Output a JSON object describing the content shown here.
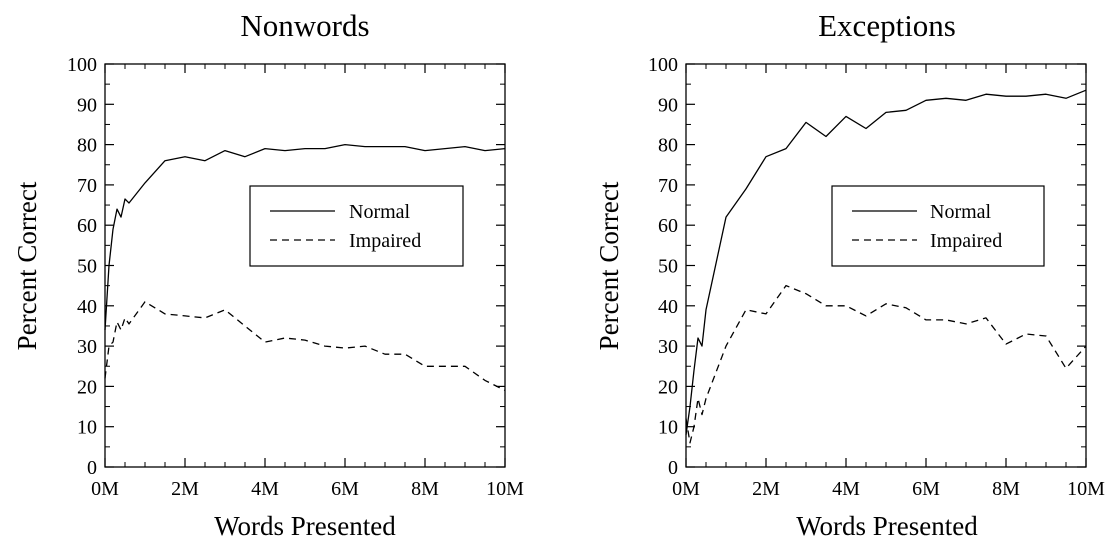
{
  "chart_data": [
    {
      "type": "line",
      "title": "Nonwords",
      "xlabel": "Words Presented",
      "ylabel": "Percent Correct",
      "xlim": [
        0,
        10
      ],
      "ylim": [
        0,
        100
      ],
      "xticks": [
        "0M",
        "2M",
        "4M",
        "6M",
        "8M",
        "10M"
      ],
      "yticks": [
        "0",
        "10",
        "20",
        "30",
        "40",
        "50",
        "60",
        "70",
        "80",
        "90",
        "100"
      ],
      "grid": false,
      "legend_position": "center-right",
      "series": [
        {
          "name": "Normal",
          "style": "solid",
          "x": [
            0,
            0.1,
            0.2,
            0.3,
            0.4,
            0.5,
            0.6,
            1.0,
            1.5,
            2.0,
            2.5,
            3.0,
            3.5,
            4.0,
            4.5,
            5.0,
            5.5,
            6.0,
            6.5,
            7.0,
            7.5,
            8.0,
            8.5,
            9.0,
            9.5,
            10.0
          ],
          "y": [
            34,
            50,
            59,
            64,
            62,
            66.5,
            65.5,
            70.5,
            76,
            77,
            76,
            78.5,
            77,
            79,
            78.5,
            79,
            79,
            80,
            79.5,
            79.5,
            79.5,
            78.5,
            79,
            79.5,
            78.5,
            79
          ]
        },
        {
          "name": "Impaired",
          "style": "dashed",
          "x": [
            0,
            0.1,
            0.2,
            0.3,
            0.4,
            0.5,
            0.6,
            1.0,
            1.5,
            2.0,
            2.5,
            3.0,
            3.5,
            4.0,
            4.5,
            5.0,
            5.5,
            6.0,
            6.5,
            7.0,
            7.5,
            8.0,
            8.5,
            9.0,
            9.5,
            10.0
          ],
          "y": [
            22,
            30,
            31,
            36,
            34,
            37,
            35.5,
            41,
            38,
            37.5,
            37,
            39,
            35,
            31,
            32,
            31.5,
            30,
            29.5,
            30,
            28,
            28,
            25,
            25,
            25,
            21.5,
            19
          ]
        }
      ]
    },
    {
      "type": "line",
      "title": "Exceptions",
      "xlabel": "Words Presented",
      "ylabel": "Percent Correct",
      "xlim": [
        0,
        10
      ],
      "ylim": [
        0,
        100
      ],
      "xticks": [
        "0M",
        "2M",
        "4M",
        "6M",
        "8M",
        "10M"
      ],
      "yticks": [
        "0",
        "10",
        "20",
        "30",
        "40",
        "50",
        "60",
        "70",
        "80",
        "90",
        "100"
      ],
      "grid": false,
      "legend_position": "center-right",
      "series": [
        {
          "name": "Normal",
          "style": "solid",
          "x": [
            0,
            0.1,
            0.2,
            0.3,
            0.4,
            0.5,
            1.0,
            1.5,
            2.0,
            2.5,
            3.0,
            3.5,
            4.0,
            4.5,
            5.0,
            5.5,
            6.0,
            6.5,
            7.0,
            7.5,
            8.0,
            8.5,
            9.0,
            9.5,
            10.0
          ],
          "y": [
            8,
            15,
            24,
            32,
            30,
            39,
            62,
            69,
            77,
            79,
            85.5,
            82,
            87,
            84,
            88,
            88.5,
            91,
            91.5,
            91,
            92.5,
            92,
            92,
            92.5,
            91.5,
            93.5
          ],
          "name_note": ""
        },
        {
          "name": "Impaired",
          "style": "dashed",
          "x": [
            0,
            0.1,
            0.2,
            0.3,
            0.4,
            0.5,
            1.0,
            1.5,
            2.0,
            2.5,
            3.0,
            3.5,
            4.0,
            4.5,
            5.0,
            5.5,
            6.0,
            6.5,
            7.0,
            7.5,
            8.0,
            8.5,
            9.0,
            9.5,
            10.0
          ],
          "y": [
            12,
            6,
            10,
            17,
            13,
            17,
            30,
            39,
            38,
            45,
            43,
            40,
            40,
            37.5,
            40.5,
            39.5,
            36.5,
            36.5,
            35.5,
            37,
            30.5,
            33,
            32.5,
            24.5,
            30
          ]
        }
      ]
    }
  ]
}
